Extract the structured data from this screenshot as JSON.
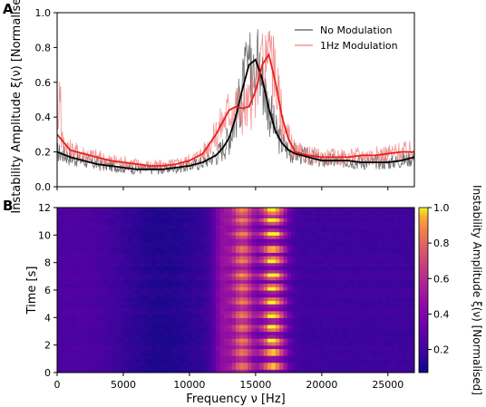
{
  "chart_data": [
    {
      "panel_label": "A",
      "type": "line",
      "ylabel": "Instability Amplitude ξ(ν) [Normalised]",
      "xlim": [
        0,
        27000
      ],
      "ylim": [
        0.0,
        1.0
      ],
      "yticks": [
        "0.0",
        "0.2",
        "0.4",
        "0.6",
        "0.8",
        "1.0"
      ],
      "legend_position": "upper-right",
      "series": [
        {
          "name": "No Modulation",
          "color": "#555555",
          "smooth_color": "#000000",
          "x": [
            0,
            1000,
            2000,
            3000,
            4000,
            5000,
            6000,
            7000,
            8000,
            9000,
            10000,
            11000,
            12000,
            12500,
            13000,
            13500,
            14000,
            14500,
            15000,
            15500,
            16000,
            16500,
            17000,
            17500,
            18000,
            19000,
            20000,
            21000,
            22000,
            23000,
            24000,
            25000,
            26000,
            27000
          ],
          "smooth": [
            0.2,
            0.17,
            0.15,
            0.13,
            0.12,
            0.11,
            0.1,
            0.1,
            0.1,
            0.11,
            0.12,
            0.14,
            0.18,
            0.22,
            0.28,
            0.4,
            0.56,
            0.7,
            0.73,
            0.62,
            0.45,
            0.32,
            0.25,
            0.21,
            0.19,
            0.17,
            0.15,
            0.15,
            0.15,
            0.14,
            0.14,
            0.14,
            0.15,
            0.17
          ],
          "peak_max": 1.0
        },
        {
          "name": "1Hz Modulation",
          "color": "#f08080",
          "smooth_color": "#e8201a",
          "x": [
            0,
            1000,
            2000,
            3000,
            4000,
            5000,
            6000,
            7000,
            8000,
            9000,
            10000,
            11000,
            12000,
            12500,
            13000,
            13500,
            14000,
            14500,
            15000,
            15500,
            16000,
            16500,
            17000,
            17500,
            18000,
            19000,
            20000,
            21000,
            22000,
            23000,
            24000,
            25000,
            26000,
            27000
          ],
          "smooth": [
            0.3,
            0.21,
            0.19,
            0.17,
            0.15,
            0.14,
            0.13,
            0.12,
            0.12,
            0.13,
            0.15,
            0.19,
            0.3,
            0.37,
            0.44,
            0.46,
            0.45,
            0.46,
            0.55,
            0.7,
            0.76,
            0.6,
            0.4,
            0.27,
            0.2,
            0.18,
            0.17,
            0.17,
            0.17,
            0.18,
            0.18,
            0.19,
            0.2,
            0.2
          ],
          "peak_max": 0.9
        }
      ]
    },
    {
      "panel_label": "B",
      "type": "heatmap",
      "xlabel": "Frequency ν [Hz]",
      "ylabel": "Time [s]",
      "xlim": [
        0,
        27000
      ],
      "ylim": [
        0,
        12
      ],
      "xticks": [
        0,
        5000,
        10000,
        15000,
        20000,
        25000
      ],
      "yticks": [
        0,
        2,
        4,
        6,
        8,
        10,
        12
      ],
      "colorbar": {
        "label": "Instability Amplitude ξ(ν) [Normalised]",
        "range": [
          0.07,
          1.0
        ],
        "ticks": [
          "0.2",
          "0.4",
          "0.6",
          "0.8",
          "1.0"
        ],
        "colormap": "plasma"
      },
      "band_center_hz": [
        12500,
        14000,
        16300
      ],
      "band_width_hz": [
        700,
        900,
        1000
      ],
      "pulse_times_s": [
        0.5,
        1.5,
        2.3,
        3.3,
        4.2,
        5.2,
        6.2,
        7.1,
        8.2,
        9.0,
        10.1,
        11.1,
        11.8
      ],
      "colors": {
        "axis": "#000000",
        "background": "#ffffff"
      }
    }
  ]
}
